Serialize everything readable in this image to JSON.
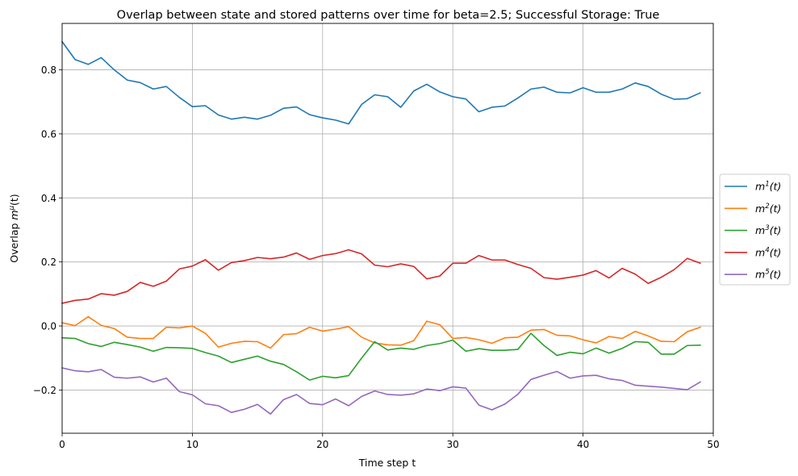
{
  "chart_data": {
    "type": "line",
    "title": "Overlap between state and stored patterns over time for beta=2.5; Successful Storage: True",
    "xlabel": "Time step t",
    "ylabel_prefix": "Overlap ",
    "ylabel_math": "m",
    "ylabel_sup": "μ",
    "ylabel_suffix": "(t)",
    "xlim": [
      0,
      50
    ],
    "ylim": [
      -0.335,
      0.945
    ],
    "xticks": [
      0,
      10,
      20,
      30,
      40,
      50
    ],
    "yticks": [
      -0.2,
      0.0,
      0.2,
      0.4,
      0.6,
      0.8
    ],
    "grid": true,
    "legend_position": "right-center",
    "x": [
      0,
      1,
      2,
      3,
      4,
      5,
      6,
      7,
      8,
      9,
      10,
      11,
      12,
      13,
      14,
      15,
      16,
      17,
      18,
      19,
      20,
      21,
      22,
      23,
      24,
      25,
      26,
      27,
      28,
      29,
      30,
      31,
      32,
      33,
      34,
      35,
      36,
      37,
      38,
      39,
      40,
      41,
      42,
      43,
      44,
      45,
      46,
      47,
      48,
      49
    ],
    "series": [
      {
        "name": "m¹(t)",
        "base": "m",
        "sup": "1",
        "suffix": "(t)",
        "color": "#1f77b4",
        "values": [
          0.888,
          0.832,
          0.817,
          0.838,
          0.8,
          0.768,
          0.76,
          0.74,
          0.748,
          0.714,
          0.685,
          0.688,
          0.659,
          0.646,
          0.652,
          0.646,
          0.658,
          0.68,
          0.684,
          0.66,
          0.65,
          0.643,
          0.631,
          0.692,
          0.722,
          0.716,
          0.683,
          0.734,
          0.755,
          0.731,
          0.716,
          0.709,
          0.669,
          0.683,
          0.687,
          0.712,
          0.74,
          0.746,
          0.73,
          0.728,
          0.744,
          0.73,
          0.73,
          0.74,
          0.759,
          0.748,
          0.724,
          0.708,
          0.71,
          0.728
        ]
      },
      {
        "name": "m²(t)",
        "base": "m",
        "sup": "2",
        "suffix": "(t)",
        "color": "#ff7f0e",
        "values": [
          0.01,
          0.001,
          0.029,
          0.002,
          -0.008,
          -0.035,
          -0.039,
          -0.039,
          -0.004,
          -0.006,
          0.0,
          -0.023,
          -0.066,
          -0.054,
          -0.048,
          -0.049,
          -0.069,
          -0.027,
          -0.024,
          -0.004,
          -0.016,
          -0.01,
          -0.002,
          -0.035,
          -0.053,
          -0.059,
          -0.06,
          -0.046,
          0.015,
          0.004,
          -0.039,
          -0.036,
          -0.043,
          -0.054,
          -0.037,
          -0.035,
          -0.013,
          -0.011,
          -0.029,
          -0.031,
          -0.043,
          -0.053,
          -0.033,
          -0.039,
          -0.017,
          -0.031,
          -0.048,
          -0.049,
          -0.018,
          -0.004
        ]
      },
      {
        "name": "m³(t)",
        "base": "m",
        "sup": "3",
        "suffix": "(t)",
        "color": "#2ca02c",
        "values": [
          -0.037,
          -0.039,
          -0.055,
          -0.064,
          -0.051,
          -0.058,
          -0.066,
          -0.079,
          -0.067,
          -0.068,
          -0.07,
          -0.083,
          -0.094,
          -0.114,
          -0.104,
          -0.094,
          -0.11,
          -0.12,
          -0.143,
          -0.169,
          -0.157,
          -0.162,
          -0.155,
          -0.1,
          -0.049,
          -0.075,
          -0.069,
          -0.073,
          -0.061,
          -0.055,
          -0.044,
          -0.079,
          -0.071,
          -0.076,
          -0.076,
          -0.073,
          -0.023,
          -0.061,
          -0.092,
          -0.082,
          -0.087,
          -0.069,
          -0.085,
          -0.07,
          -0.049,
          -0.051,
          -0.088,
          -0.088,
          -0.061,
          -0.06
        ]
      },
      {
        "name": "m⁴(t)",
        "base": "m",
        "sup": "4",
        "suffix": "(t)",
        "color": "#d62728",
        "values": [
          0.071,
          0.08,
          0.084,
          0.101,
          0.096,
          0.108,
          0.136,
          0.124,
          0.14,
          0.178,
          0.187,
          0.207,
          0.174,
          0.198,
          0.204,
          0.214,
          0.21,
          0.215,
          0.228,
          0.208,
          0.22,
          0.226,
          0.238,
          0.225,
          0.19,
          0.185,
          0.194,
          0.186,
          0.147,
          0.156,
          0.196,
          0.196,
          0.22,
          0.206,
          0.206,
          0.192,
          0.18,
          0.151,
          0.146,
          0.152,
          0.159,
          0.173,
          0.15,
          0.18,
          0.162,
          0.133,
          0.152,
          0.176,
          0.211,
          0.196
        ]
      },
      {
        "name": "m⁵(t)",
        "base": "m",
        "sup": "5",
        "suffix": "(t)",
        "color": "#9467bd",
        "values": [
          -0.131,
          -0.14,
          -0.143,
          -0.136,
          -0.16,
          -0.163,
          -0.159,
          -0.175,
          -0.163,
          -0.205,
          -0.215,
          -0.243,
          -0.249,
          -0.27,
          -0.26,
          -0.245,
          -0.275,
          -0.23,
          -0.214,
          -0.242,
          -0.246,
          -0.228,
          -0.249,
          -0.22,
          -0.203,
          -0.214,
          -0.216,
          -0.212,
          -0.197,
          -0.202,
          -0.19,
          -0.194,
          -0.247,
          -0.262,
          -0.244,
          -0.213,
          -0.167,
          -0.154,
          -0.142,
          -0.163,
          -0.156,
          -0.154,
          -0.165,
          -0.17,
          -0.185,
          -0.188,
          -0.191,
          -0.195,
          -0.199,
          -0.175
        ]
      }
    ]
  }
}
